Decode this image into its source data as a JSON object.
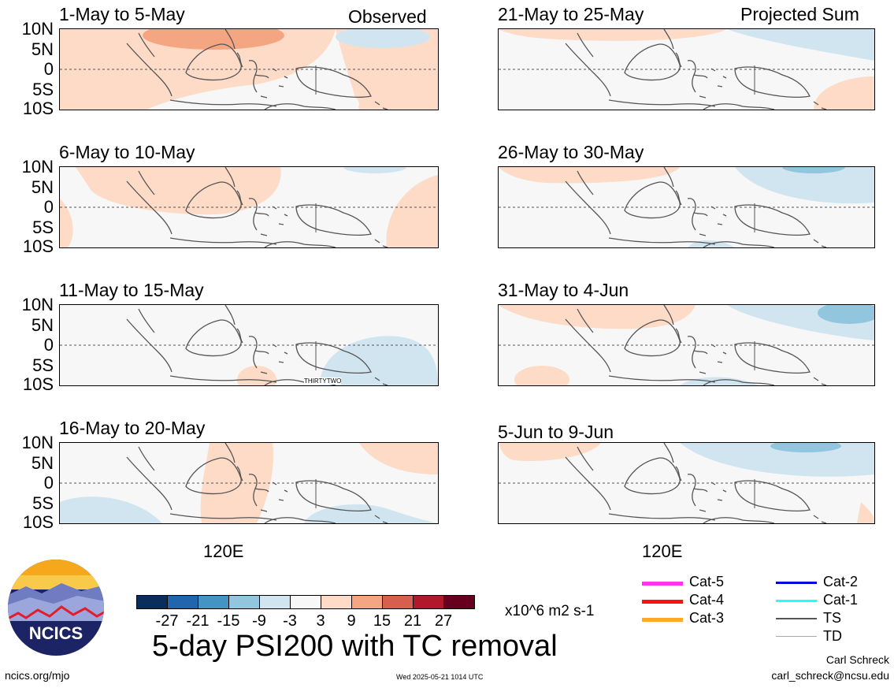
{
  "panels": [
    {
      "id": "p1",
      "title": "1-May to 5-May",
      "tag": "Observed"
    },
    {
      "id": "p2",
      "title": "6-May to 10-May",
      "tag": ""
    },
    {
      "id": "p3",
      "title": "11-May to 15-May",
      "tag": "",
      "annotation": "THIRTYTWO"
    },
    {
      "id": "p4",
      "title": "16-May to 20-May",
      "tag": ""
    },
    {
      "id": "p5",
      "title": "21-May to 25-May",
      "tag": "Projected Sum"
    },
    {
      "id": "p6",
      "title": "26-May to 30-May",
      "tag": ""
    },
    {
      "id": "p7",
      "title": "31-May to 4-Jun",
      "tag": ""
    },
    {
      "id": "p8",
      "title": "5-Jun to 9-Jun",
      "tag": ""
    }
  ],
  "lat_ticks": [
    "10N",
    "5N",
    "0",
    "5S",
    "10S"
  ],
  "lon_label": "120E",
  "colorbar": {
    "colors": [
      "#0a2e5c",
      "#2166ac",
      "#4393c3",
      "#92c5de",
      "#d1e5f0",
      "#f7f7f7",
      "#fddbc7",
      "#f4a582",
      "#d6604d",
      "#b2182b",
      "#67001f"
    ],
    "ticks": [
      "-27",
      "-21",
      "-15",
      "-9",
      "-3",
      "3",
      "9",
      "15",
      "21",
      "27"
    ],
    "units": "x10^6 m2 s-1"
  },
  "title": "5-day PSI200 with TC removal",
  "legend": [
    {
      "label": "Cat-5",
      "color": "#ff33ee"
    },
    {
      "label": "Cat-4",
      "color": "#ff1111"
    },
    {
      "label": "Cat-3",
      "color": "#ffaa22"
    },
    {
      "label": "Cat-2",
      "color": "#0000dd"
    },
    {
      "label": "Cat-1",
      "color": "#22ffff"
    },
    {
      "label": "TS",
      "color": "#555555"
    },
    {
      "label": "TD",
      "color": "#aaaaaa"
    }
  ],
  "logo_text": "NCICS",
  "footer": {
    "left": "ncics.org/mjo",
    "center": "Wed 2025-05-21 1014 UTC",
    "author": "Carl Schreck",
    "email": "carl_schreck@ncsu.edu"
  }
}
